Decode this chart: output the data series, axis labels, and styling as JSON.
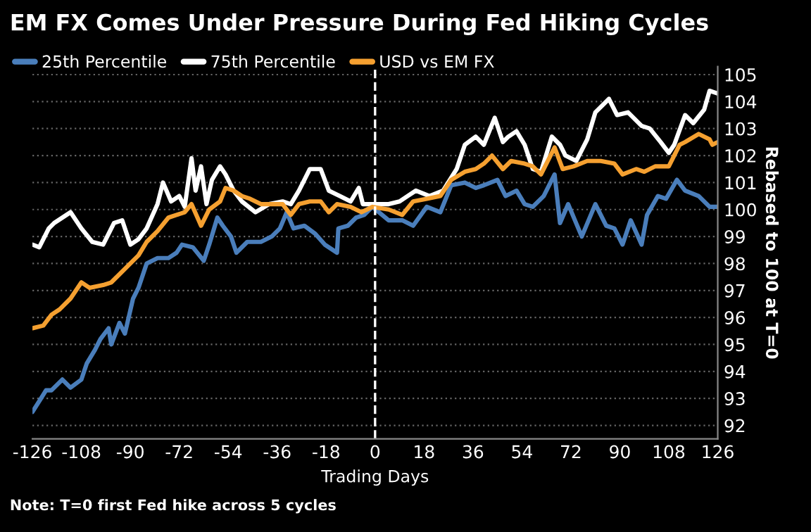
{
  "chart_data": {
    "type": "line",
    "title": "EM FX Comes Under Pressure During Fed Hiking Cycles",
    "xlabel": "Trading Days",
    "ylabel": "Rebased to 100 at T=0",
    "annotations": [
      "Note: T=0 first Fed hike across 5 cycles"
    ],
    "xlim": [
      -126,
      126
    ],
    "xticks": [
      -126,
      -108,
      -90,
      -72,
      -54,
      -36,
      -18,
      0,
      18,
      36,
      54,
      72,
      90,
      108,
      126
    ],
    "ylim": [
      91.5,
      105.3
    ],
    "yticks": [
      92,
      93,
      94,
      95,
      96,
      97,
      98,
      99,
      100,
      101,
      102,
      103,
      104,
      105
    ],
    "grid": "y",
    "legend": "top left",
    "line_style": "solid",
    "marker": "none",
    "ref_lines": [
      {
        "axis": "x",
        "value": 0,
        "color": "#ffffff",
        "line_style": "dashed"
      }
    ],
    "series": [
      {
        "name": "25th Percentile",
        "color": "#4a7ebb",
        "x": [
          -126,
          -123.5,
          -121,
          -119,
          -115,
          -112,
          -108,
          -106,
          -103,
          -101,
          -98,
          -97,
          -94,
          -92,
          -89,
          -87,
          -84,
          -80,
          -76,
          -73,
          -71,
          -67,
          -63,
          -61,
          -58,
          -56,
          -53,
          -51,
          -47,
          -42,
          -38,
          -35,
          -32.5,
          -30,
          -26,
          -22,
          -18.5,
          -14,
          -13.5,
          -10,
          -7,
          -4,
          -1,
          5,
          10,
          14,
          19,
          24,
          28,
          33,
          37,
          40,
          45,
          48,
          52,
          55,
          58,
          62,
          66,
          68,
          71,
          76,
          81,
          85,
          88,
          91,
          94,
          98,
          100,
          104,
          107,
          111,
          114,
          119,
          123,
          126
        ],
        "values": [
          92.5,
          92.9,
          93.3,
          93.3,
          93.7,
          93.4,
          93.7,
          94.3,
          94.8,
          95.2,
          95.6,
          95.0,
          95.8,
          95.4,
          96.7,
          97.1,
          98.0,
          98.2,
          98.2,
          98.4,
          98.7,
          98.6,
          98.1,
          98.7,
          99.7,
          99.4,
          99.0,
          98.4,
          98.8,
          98.8,
          99.0,
          99.3,
          99.9,
          99.3,
          99.4,
          99.1,
          98.7,
          98.4,
          99.3,
          99.4,
          99.7,
          99.8,
          100.1,
          99.6,
          99.6,
          99.4,
          100.1,
          99.9,
          100.9,
          101.0,
          100.8,
          100.9,
          101.1,
          100.5,
          100.7,
          100.2,
          100.1,
          100.5,
          101.3,
          99.5,
          100.2,
          99.0,
          100.2,
          99.4,
          99.3,
          98.7,
          99.6,
          98.7,
          99.8,
          100.5,
          100.4,
          101.1,
          100.7,
          100.5,
          100.1,
          100.1
        ]
      },
      {
        "name": "75th Percentile",
        "color": "#ffffff",
        "x": [
          -126,
          -123.5,
          -120,
          -118,
          -112,
          -108,
          -104,
          -100,
          -96,
          -93,
          -90,
          -87,
          -84,
          -80,
          -78,
          -75,
          -72,
          -70,
          -67.5,
          -66,
          -64,
          -62,
          -60,
          -57,
          -55,
          -52,
          -49,
          -44,
          -39,
          -34,
          -31,
          -28,
          -24,
          -20,
          -17,
          -13,
          -9,
          -6,
          -4.5,
          -1,
          5,
          9,
          12,
          15,
          20,
          25,
          30,
          33,
          37,
          40,
          44,
          47,
          49,
          52,
          55,
          58,
          61,
          65,
          68,
          70,
          74,
          78,
          81,
          86,
          89,
          93,
          98,
          101,
          105,
          108,
          110,
          114,
          117,
          121,
          123,
          126
        ],
        "values": [
          98.7,
          98.6,
          99.3,
          99.5,
          99.9,
          99.3,
          98.8,
          98.7,
          99.5,
          99.6,
          98.7,
          98.9,
          99.3,
          100.2,
          101.0,
          100.3,
          100.5,
          100.1,
          101.9,
          100.7,
          101.6,
          100.2,
          101.1,
          101.6,
          101.3,
          100.7,
          100.3,
          99.9,
          100.2,
          100.3,
          100.2,
          100.7,
          101.5,
          101.5,
          100.7,
          100.5,
          100.3,
          100.8,
          100.2,
          100.2,
          100.2,
          100.3,
          100.5,
          100.7,
          100.5,
          100.7,
          101.5,
          102.4,
          102.7,
          102.4,
          103.4,
          102.5,
          102.7,
          102.9,
          102.4,
          101.5,
          101.4,
          102.7,
          102.4,
          102.0,
          101.8,
          102.6,
          103.6,
          104.1,
          103.5,
          103.6,
          103.1,
          103.0,
          102.5,
          102.1,
          102.4,
          103.5,
          103.2,
          103.7,
          104.4,
          104.3
        ]
      },
      {
        "name": "USD vs EM FX",
        "color": "#f5a030",
        "x": [
          -126,
          -122,
          -119,
          -116,
          -112,
          -108,
          -105,
          -100,
          -97,
          -94,
          -90,
          -87,
          -84,
          -80,
          -76,
          -73,
          -70,
          -67.5,
          -64,
          -61,
          -57,
          -55,
          -52,
          -49,
          -46,
          -42,
          -38,
          -34,
          -31,
          -28,
          -24,
          -20,
          -17,
          -14,
          -9,
          -5,
          -1,
          5,
          10,
          14,
          19,
          24,
          28,
          33,
          37,
          40,
          43,
          47,
          50,
          55,
          58,
          61,
          66,
          69,
          73,
          78,
          83,
          88,
          91,
          96,
          99,
          103,
          108,
          112,
          114,
          119,
          123,
          124,
          126
        ],
        "values": [
          95.6,
          95.7,
          96.1,
          96.3,
          96.7,
          97.3,
          97.1,
          97.2,
          97.3,
          97.6,
          98.0,
          98.3,
          98.8,
          99.2,
          99.7,
          99.8,
          99.9,
          100.2,
          99.4,
          100.0,
          100.3,
          100.8,
          100.7,
          100.5,
          100.4,
          100.2,
          100.2,
          100.2,
          99.8,
          100.2,
          100.3,
          100.3,
          99.9,
          100.2,
          100.1,
          99.9,
          100.1,
          100.0,
          99.8,
          100.3,
          100.4,
          100.5,
          101.1,
          101.4,
          101.5,
          101.7,
          102.0,
          101.5,
          101.8,
          101.7,
          101.6,
          101.3,
          102.3,
          101.5,
          101.6,
          101.8,
          101.8,
          101.7,
          101.3,
          101.5,
          101.4,
          101.6,
          101.6,
          102.4,
          102.5,
          102.8,
          102.6,
          102.4,
          102.5
        ]
      }
    ]
  }
}
